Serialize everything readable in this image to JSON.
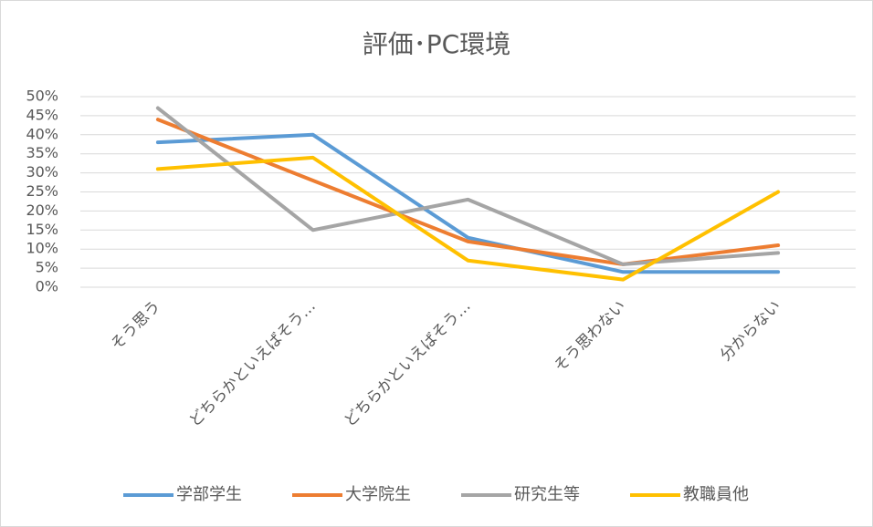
{
  "chart_data": {
    "type": "line",
    "title": "評価･PC環境",
    "categories": [
      "そう思う",
      "どちらかといえばそう…",
      "どちらかといえばそう…",
      "そう思わない",
      "分からない"
    ],
    "series": [
      {
        "name": "学部学生",
        "color": "#5b9bd5",
        "values": [
          38,
          40,
          13,
          4,
          4
        ]
      },
      {
        "name": "大学院生",
        "color": "#ed7d31",
        "values": [
          44,
          28,
          12,
          6,
          11
        ]
      },
      {
        "name": "研究生等",
        "color": "#a5a5a5",
        "values": [
          47,
          15,
          23,
          6,
          9
        ]
      },
      {
        "name": "教職員他",
        "color": "#ffc000",
        "values": [
          31,
          34,
          7,
          2,
          25
        ]
      }
    ],
    "ylim": [
      0,
      50
    ],
    "yticks": [
      {
        "value": 0,
        "label": "0%"
      },
      {
        "value": 5,
        "label": "5%"
      },
      {
        "value": 10,
        "label": "10%"
      },
      {
        "value": 15,
        "label": "15%"
      },
      {
        "value": 20,
        "label": "20%"
      },
      {
        "value": 25,
        "label": "25%"
      },
      {
        "value": 30,
        "label": "30%"
      },
      {
        "value": 35,
        "label": "35%"
      },
      {
        "value": 40,
        "label": "40%"
      },
      {
        "value": 45,
        "label": "45%"
      },
      {
        "value": 50,
        "label": "50%"
      }
    ],
    "grid": true,
    "legend": "bottom"
  }
}
